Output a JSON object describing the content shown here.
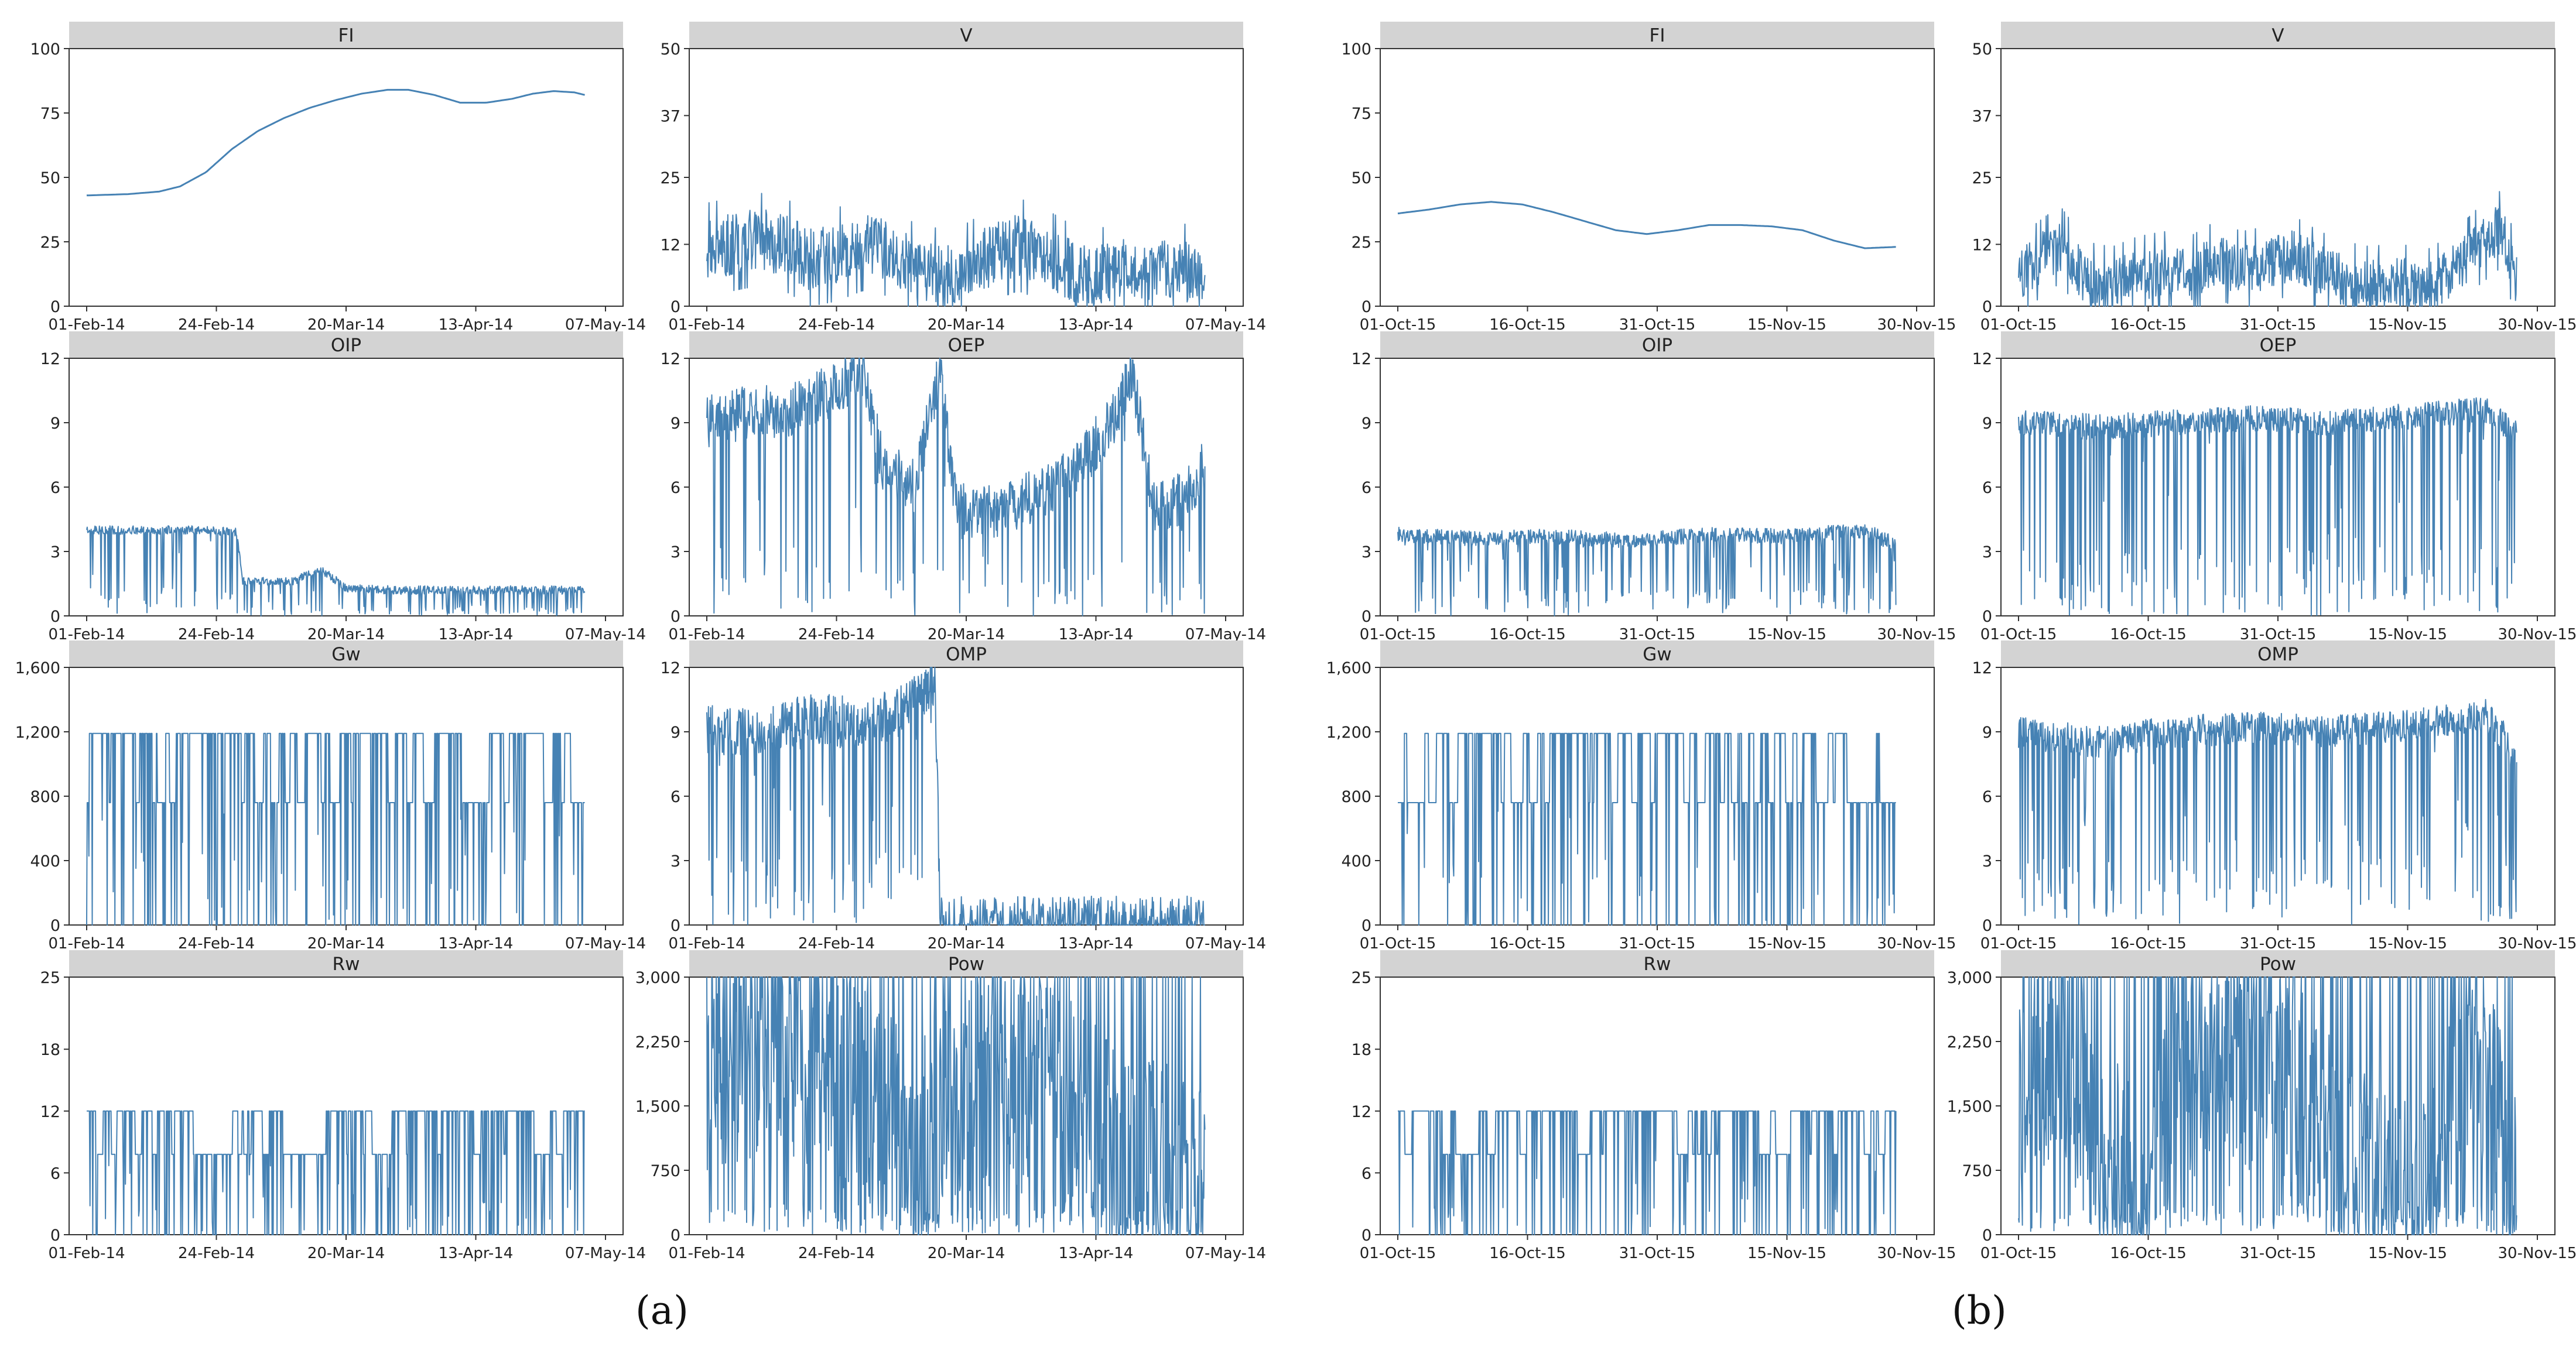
{
  "figure": {
    "line_color": "#4682b4",
    "strip_color": "#d3d3d3",
    "panel_labels": [
      "(a)",
      "(b)"
    ]
  },
  "chart_data": [
    {
      "type": "line",
      "group": "(a)",
      "title": "FI",
      "xlabel": "",
      "ylabel": "",
      "ylim": [
        0,
        100
      ],
      "yticks": [
        "0",
        "25",
        "50",
        "75",
        "100"
      ],
      "ytick_values": [
        0,
        25,
        50,
        75,
        100
      ],
      "xticks": [
        "01-Feb-14",
        "24-Feb-14",
        "20-Mar-14",
        "13-Apr-14",
        "07-May-14"
      ],
      "xlim": [
        0,
        100
      ],
      "style": "smooth",
      "x": [
        0,
        8,
        14,
        18,
        23,
        28,
        33,
        38,
        43,
        48,
        53,
        58,
        62,
        67,
        72,
        77,
        82,
        86,
        90,
        94,
        96
      ],
      "values": [
        43,
        43.5,
        44.5,
        46.5,
        52,
        61,
        68,
        73,
        77,
        80,
        82.5,
        84,
        84,
        82,
        79,
        79,
        80.5,
        82.5,
        83.5,
        83,
        82
      ]
    },
    {
      "type": "line",
      "group": "(a)",
      "title": "V",
      "xlabel": "",
      "ylabel": "",
      "ylim": [
        0,
        50
      ],
      "yticks": [
        "0",
        "12",
        "25",
        "37",
        "50"
      ],
      "ytick_values": [
        0,
        12,
        25,
        37,
        50
      ],
      "xticks": [
        "01-Feb-14",
        "24-Feb-14",
        "20-Mar-14",
        "13-Apr-14",
        "07-May-14"
      ],
      "xlim": [
        0,
        100
      ],
      "style": "noisy",
      "x": [
        0,
        5,
        10,
        15,
        20,
        25,
        30,
        35,
        40,
        45,
        50,
        55,
        60,
        65,
        70,
        75,
        80,
        85,
        90,
        96
      ],
      "values": [
        11,
        12,
        13,
        12,
        9,
        10,
        12,
        11,
        7,
        6,
        7,
        10,
        12,
        10,
        7,
        6,
        7,
        6,
        8,
        5
      ],
      "noise": 6
    },
    {
      "type": "line",
      "group": "(b)",
      "title": "FI",
      "xlabel": "",
      "ylabel": "",
      "ylim": [
        0,
        100
      ],
      "yticks": [
        "0",
        "25",
        "50",
        "75",
        "100"
      ],
      "ytick_values": [
        0,
        25,
        50,
        75,
        100
      ],
      "xticks": [
        "01-Oct-15",
        "16-Oct-15",
        "31-Oct-15",
        "15-Nov-15",
        "30-Nov-15"
      ],
      "xlim": [
        0,
        100
      ],
      "style": "smooth",
      "x": [
        0,
        6,
        12,
        18,
        24,
        30,
        36,
        42,
        48,
        54,
        60,
        66,
        72,
        78,
        84,
        90,
        96
      ],
      "values": [
        36,
        37.5,
        39.5,
        40.5,
        39.5,
        36.5,
        33,
        29.5,
        28,
        29.5,
        31.5,
        31.5,
        31,
        29.5,
        25.5,
        22.5,
        23
      ]
    },
    {
      "type": "line",
      "group": "(b)",
      "title": "V",
      "xlabel": "",
      "ylabel": "",
      "ylim": [
        0,
        50
      ],
      "yticks": [
        "0",
        "12",
        "25",
        "37",
        "50"
      ],
      "ytick_values": [
        0,
        12,
        25,
        37,
        50
      ],
      "xticks": [
        "01-Oct-15",
        "16-Oct-15",
        "31-Oct-15",
        "15-Nov-15",
        "30-Nov-15"
      ],
      "xlim": [
        0,
        100
      ],
      "style": "noisy",
      "x": [
        0,
        4,
        8,
        13,
        18,
        23,
        28,
        33,
        38,
        43,
        48,
        53,
        58,
        63,
        68,
        73,
        78,
        83,
        88,
        93,
        96
      ],
      "values": [
        6,
        9,
        12,
        5,
        4,
        6,
        7,
        6,
        9,
        7,
        8,
        10,
        7,
        5,
        4,
        5,
        3,
        6,
        11,
        15,
        5
      ],
      "noise": 5
    },
    {
      "type": "line",
      "group": "(a)",
      "title": "OIP",
      "xlabel": "",
      "ylabel": "",
      "ylim": [
        0,
        12
      ],
      "yticks": [
        "0",
        "3",
        "6",
        "9",
        "12"
      ],
      "ytick_values": [
        0,
        3,
        6,
        9,
        12
      ],
      "xticks": [
        "01-Feb-14",
        "24-Feb-14",
        "20-Mar-14",
        "13-Apr-14",
        "07-May-14"
      ],
      "xlim": [
        0,
        100
      ],
      "style": "drops",
      "x": [
        0,
        10,
        20,
        29,
        30,
        40,
        45,
        50,
        60,
        70,
        80,
        90,
        96
      ],
      "values": [
        4,
        4,
        4,
        3.9,
        1.6,
        1.6,
        2.2,
        1.3,
        1.2,
        1.2,
        1.2,
        1.2,
        1.2
      ],
      "noise": 0.4,
      "drop_rate": 0.12
    },
    {
      "type": "line",
      "group": "(a)",
      "title": "OEP",
      "xlabel": "",
      "ylabel": "",
      "ylim": [
        0,
        12
      ],
      "yticks": [
        "0",
        "3",
        "6",
        "9",
        "12"
      ],
      "ytick_values": [
        0,
        3,
        6,
        9,
        12
      ],
      "xticks": [
        "01-Feb-14",
        "24-Feb-14",
        "20-Mar-14",
        "13-Apr-14",
        "07-May-14"
      ],
      "xlim": [
        0,
        100
      ],
      "style": "drops",
      "x": [
        0,
        8,
        16,
        24,
        30,
        34,
        40,
        45,
        48,
        55,
        62,
        70,
        78,
        82,
        86,
        92,
        96
      ],
      "values": [
        9,
        9.5,
        9.5,
        10.5,
        11.5,
        7,
        6,
        11.5,
        5,
        4.8,
        5.5,
        6.5,
        9,
        11.5,
        5,
        5.5,
        7
      ],
      "noise": 2.5,
      "drop_rate": 0.1
    },
    {
      "type": "line",
      "group": "(b)",
      "title": "OIP",
      "xlabel": "",
      "ylabel": "",
      "ylim": [
        0,
        12
      ],
      "yticks": [
        "0",
        "3",
        "6",
        "9",
        "12"
      ],
      "ytick_values": [
        0,
        3,
        6,
        9,
        12
      ],
      "xticks": [
        "01-Oct-15",
        "16-Oct-15",
        "31-Oct-15",
        "15-Nov-15",
        "30-Nov-15"
      ],
      "xlim": [
        0,
        100
      ],
      "style": "drops",
      "x": [
        0,
        15,
        30,
        45,
        60,
        75,
        90,
        96
      ],
      "values": [
        3.8,
        3.6,
        3.7,
        3.5,
        3.8,
        3.7,
        4,
        3.3
      ],
      "noise": 0.7,
      "drop_rate": 0.14
    },
    {
      "type": "line",
      "group": "(b)",
      "title": "OEP",
      "xlabel": "",
      "ylabel": "",
      "ylim": [
        0,
        12
      ],
      "yticks": [
        "0",
        "3",
        "6",
        "9",
        "12"
      ],
      "ytick_values": [
        0,
        3,
        6,
        9,
        12
      ],
      "xticks": [
        "01-Oct-15",
        "16-Oct-15",
        "31-Oct-15",
        "15-Nov-15",
        "30-Nov-15"
      ],
      "xlim": [
        0,
        100
      ],
      "style": "drops",
      "x": [
        0,
        15,
        30,
        45,
        60,
        75,
        90,
        96
      ],
      "values": [
        9,
        8.8,
        9,
        9.2,
        9,
        9.3,
        9.6,
        8.5
      ],
      "noise": 1.2,
      "drop_rate": 0.14
    },
    {
      "type": "line",
      "group": "(a)",
      "title": "Gw",
      "xlabel": "",
      "ylabel": "",
      "ylim": [
        0,
        1600
      ],
      "yticks": [
        "0",
        "400",
        "800",
        "1,200",
        "1,600"
      ],
      "ytick_values": [
        0,
        400,
        800,
        1200,
        1600
      ],
      "xticks": [
        "01-Feb-14",
        "24-Feb-14",
        "20-Mar-14",
        "13-Apr-14",
        "07-May-14"
      ],
      "xlim": [
        0,
        100
      ],
      "style": "levels",
      "x": [
        0,
        96
      ],
      "values": [
        1190,
        1190
      ],
      "levels": [
        1190,
        1190,
        760
      ],
      "drop_rate": 0.16
    },
    {
      "type": "line",
      "group": "(a)",
      "title": "OMP",
      "xlabel": "",
      "ylabel": "",
      "ylim": [
        0,
        12
      ],
      "yticks": [
        "0",
        "3",
        "6",
        "9",
        "12"
      ],
      "ytick_values": [
        0,
        3,
        6,
        9,
        12
      ],
      "xticks": [
        "01-Feb-14",
        "24-Feb-14",
        "20-Mar-14",
        "13-Apr-14",
        "07-May-14"
      ],
      "xlim": [
        0,
        100
      ],
      "style": "drops",
      "x": [
        0,
        10,
        20,
        30,
        38,
        44,
        45,
        46,
        60,
        80,
        96
      ],
      "values": [
        9,
        9,
        9.5,
        9.5,
        10,
        11.5,
        0.1,
        0.1,
        0.1,
        0.1,
        0.1
      ],
      "noise": 2.5,
      "drop_rate": 0.12
    },
    {
      "type": "line",
      "group": "(b)",
      "title": "Gw",
      "xlabel": "",
      "ylabel": "",
      "ylim": [
        0,
        1600
      ],
      "yticks": [
        "0",
        "400",
        "800",
        "1,200",
        "1,600"
      ],
      "ytick_values": [
        0,
        400,
        800,
        1200,
        1600
      ],
      "xticks": [
        "01-Oct-15",
        "16-Oct-15",
        "31-Oct-15",
        "15-Nov-15",
        "30-Nov-15"
      ],
      "xlim": [
        0,
        100
      ],
      "style": "levels",
      "x": [
        0,
        96
      ],
      "values": [
        1190,
        1190
      ],
      "levels": [
        1190,
        1190,
        760
      ],
      "drop_rate": 0.15
    },
    {
      "type": "line",
      "group": "(b)",
      "title": "OMP",
      "xlabel": "",
      "ylabel": "",
      "ylim": [
        0,
        12
      ],
      "yticks": [
        "0",
        "3",
        "6",
        "9",
        "12"
      ],
      "ytick_values": [
        0,
        3,
        6,
        9,
        12
      ],
      "xticks": [
        "01-Oct-15",
        "16-Oct-15",
        "31-Oct-15",
        "15-Nov-15",
        "30-Nov-15"
      ],
      "xlim": [
        0,
        100
      ],
      "style": "drops",
      "x": [
        0,
        15,
        30,
        45,
        60,
        75,
        90,
        96
      ],
      "values": [
        9,
        8.5,
        9,
        9.2,
        9,
        9.3,
        9.8,
        8
      ],
      "noise": 1.5,
      "drop_rate": 0.14
    },
    {
      "type": "line",
      "group": "(a)",
      "title": "Rw",
      "xlabel": "",
      "ylabel": "",
      "ylim": [
        0,
        25
      ],
      "yticks": [
        "0",
        "6",
        "12",
        "18",
        "25"
      ],
      "ytick_values": [
        0,
        6,
        12,
        18,
        25
      ],
      "xticks": [
        "01-Feb-14",
        "24-Feb-14",
        "20-Mar-14",
        "13-Apr-14",
        "07-May-14"
      ],
      "xlim": [
        0,
        100
      ],
      "style": "levels",
      "x": [
        0,
        96
      ],
      "values": [
        12,
        12
      ],
      "levels": [
        12,
        12,
        7.8
      ],
      "drop_rate": 0.16
    },
    {
      "type": "line",
      "group": "(a)",
      "title": "Pow",
      "xlabel": "",
      "ylabel": "",
      "ylim": [
        0,
        3000
      ],
      "yticks": [
        "0",
        "750",
        "1,500",
        "2,250",
        "3,000"
      ],
      "ytick_values": [
        0,
        750,
        1500,
        2250,
        3000
      ],
      "xticks": [
        "01-Feb-14",
        "24-Feb-14",
        "20-Mar-14",
        "13-Apr-14",
        "07-May-14"
      ],
      "xlim": [
        0,
        100
      ],
      "style": "spiky",
      "x": [
        0,
        10,
        20,
        30,
        40,
        50,
        60,
        70,
        80,
        90,
        96
      ],
      "values": [
        2000,
        2200,
        2100,
        1700,
        900,
        1800,
        1800,
        1600,
        800,
        700,
        400
      ],
      "noise": 1300
    },
    {
      "type": "line",
      "group": "(b)",
      "title": "Rw",
      "xlabel": "",
      "ylabel": "",
      "ylim": [
        0,
        25
      ],
      "yticks": [
        "0",
        "6",
        "12",
        "18",
        "25"
      ],
      "ytick_values": [
        0,
        6,
        12,
        18,
        25
      ],
      "xticks": [
        "01-Oct-15",
        "16-Oct-15",
        "31-Oct-15",
        "15-Nov-15",
        "30-Nov-15"
      ],
      "xlim": [
        0,
        100
      ],
      "style": "levels",
      "x": [
        0,
        96
      ],
      "values": [
        12,
        12
      ],
      "levels": [
        12,
        12,
        7.8
      ],
      "drop_rate": 0.15
    },
    {
      "type": "line",
      "group": "(b)",
      "title": "Pow",
      "xlabel": "",
      "ylabel": "",
      "ylim": [
        0,
        3000
      ],
      "yticks": [
        "0",
        "750",
        "1,500",
        "2,250",
        "3,000"
      ],
      "ytick_values": [
        0,
        750,
        1500,
        2250,
        3000
      ],
      "xticks": [
        "01-Oct-15",
        "16-Oct-15",
        "31-Oct-15",
        "15-Nov-15",
        "30-Nov-15"
      ],
      "xlim": [
        0,
        100
      ],
      "style": "spiky",
      "x": [
        0,
        8,
        16,
        24,
        32,
        40,
        48,
        56,
        64,
        72,
        80,
        88,
        96
      ],
      "values": [
        1600,
        2400,
        900,
        400,
        2000,
        1800,
        2200,
        1400,
        700,
        400,
        500,
        2400,
        300
      ],
      "noise": 1300
    }
  ]
}
